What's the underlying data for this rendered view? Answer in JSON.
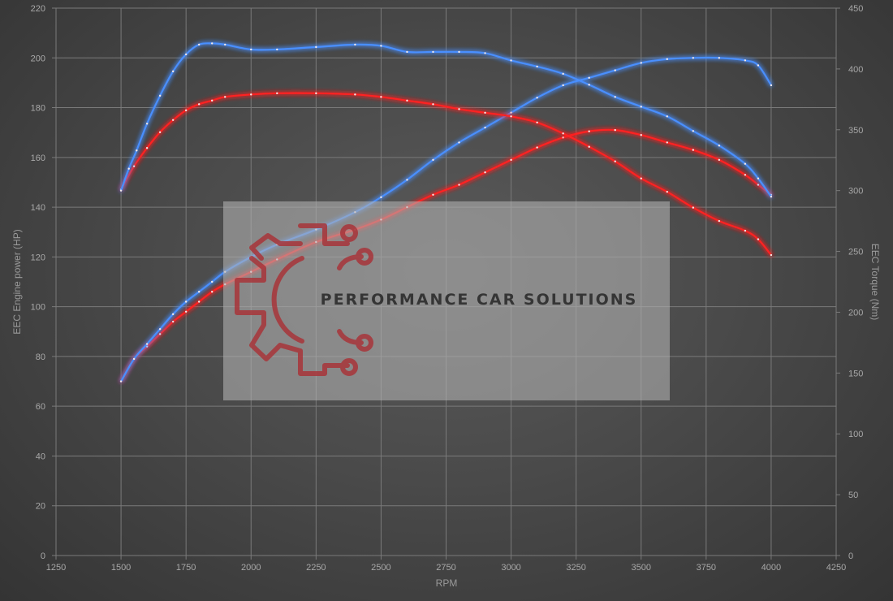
{
  "chart_data": {
    "type": "line",
    "title": "",
    "xlabel": "RPM",
    "ylabel_left": "EEC Engine power (HP)",
    "ylabel_right": "EEC Torque (Nm)",
    "xlim": [
      1250,
      4250
    ],
    "ylim_left": [
      0,
      220
    ],
    "ylim_right": [
      0,
      450
    ],
    "x_ticks": [
      1250,
      1500,
      1750,
      2000,
      2250,
      2500,
      2750,
      3000,
      3250,
      3500,
      3750,
      4000,
      4250
    ],
    "y_left_ticks": [
      0,
      20,
      40,
      60,
      80,
      100,
      120,
      140,
      160,
      180,
      200,
      220
    ],
    "y_right_ticks": [
      0,
      50,
      100,
      150,
      200,
      250,
      300,
      350,
      400,
      450
    ],
    "grid": true,
    "series": [
      {
        "axis": "left",
        "color": "#ff2222",
        "x": [
          1500,
          1550,
          1600,
          1650,
          1700,
          1750,
          1800,
          1850,
          1900,
          2000,
          2100,
          2250,
          2400,
          2500,
          2600,
          2700,
          2800,
          2900,
          3000,
          3100,
          3200,
          3300,
          3400,
          3500,
          3600,
          3700,
          3800,
          3900,
          3950,
          4000
        ],
        "y": [
          70,
          79,
          84,
          89,
          94,
          98,
          102,
          106,
          109,
          114,
          119,
          126,
          131,
          135,
          140,
          145,
          149,
          154,
          159,
          164,
          168,
          170.5,
          171,
          169,
          166,
          163,
          159,
          153,
          149,
          145
        ]
      },
      {
        "axis": "left",
        "color": "#4a8fff",
        "x": [
          1500,
          1550,
          1600,
          1650,
          1700,
          1750,
          1800,
          1850,
          1900,
          2000,
          2100,
          2250,
          2400,
          2500,
          2600,
          2700,
          2800,
          2900,
          3000,
          3100,
          3200,
          3300,
          3400,
          3500,
          3600,
          3700,
          3800,
          3900,
          3950,
          4000
        ],
        "y": [
          70,
          79,
          85,
          91,
          97,
          102,
          106,
          110,
          114,
          120,
          125,
          131,
          138,
          144,
          151,
          159,
          166,
          172,
          178,
          184,
          189,
          192,
          195,
          198,
          199.5,
          200,
          200,
          199,
          197,
          189
        ]
      },
      {
        "axis": "right",
        "color": "#ff2222",
        "x": [
          1500,
          1550,
          1600,
          1650,
          1700,
          1750,
          1800,
          1850,
          1900,
          2000,
          2100,
          2250,
          2400,
          2500,
          2600,
          2700,
          2800,
          2900,
          3000,
          3100,
          3200,
          3300,
          3400,
          3500,
          3600,
          3700,
          3800,
          3900,
          3950,
          4000
        ],
        "y": [
          301,
          320,
          335,
          348,
          358,
          366,
          371,
          374,
          377,
          379,
          380,
          380,
          379,
          377,
          374,
          371,
          367,
          364,
          361,
          356,
          347,
          336,
          324,
          310,
          299,
          286,
          275,
          267,
          260,
          247
        ]
      },
      {
        "axis": "right",
        "color": "#4a8fff",
        "x": [
          1500,
          1530,
          1560,
          1600,
          1650,
          1700,
          1750,
          1800,
          1850,
          1900,
          2000,
          2100,
          2250,
          2400,
          2500,
          2600,
          2700,
          2800,
          2900,
          3000,
          3100,
          3200,
          3300,
          3400,
          3500,
          3600,
          3700,
          3800,
          3900,
          3950,
          4000
        ],
        "y": [
          300,
          318,
          333,
          355,
          378,
          398,
          412,
          420,
          421,
          420,
          416,
          416,
          418,
          420,
          419,
          414,
          414,
          414,
          413,
          407,
          402,
          396,
          387,
          377,
          369,
          361,
          349,
          337,
          322,
          310,
          295
        ]
      }
    ]
  },
  "watermark": {
    "text": "PERFORMANCE CAR SOLUTIONS",
    "logo": "gear-circuit-logo"
  }
}
